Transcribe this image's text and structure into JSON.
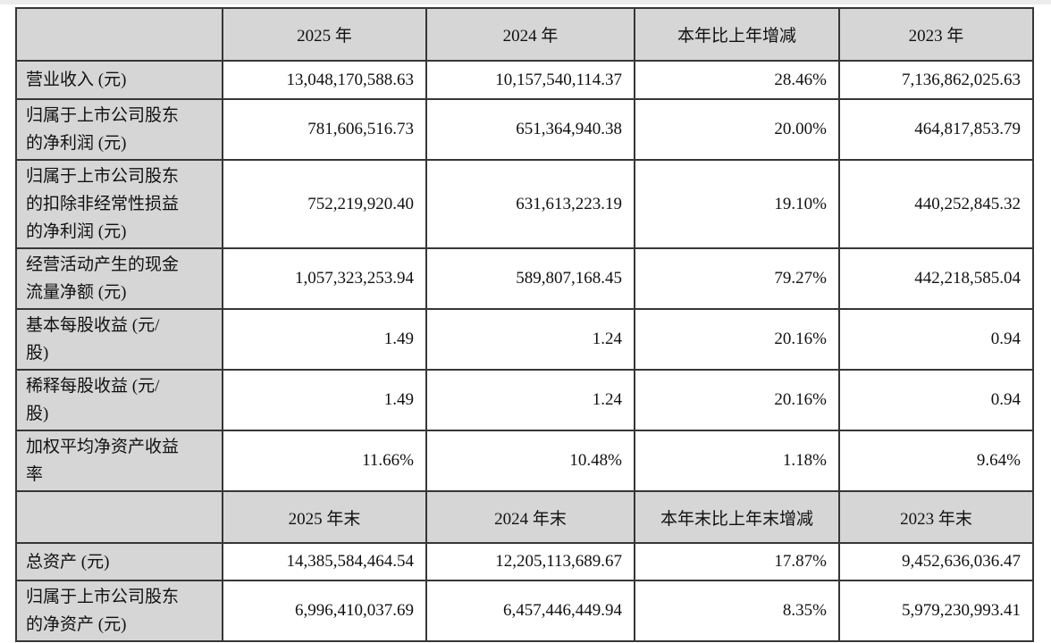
{
  "colors": {
    "cell_gray": "#d6d6d6",
    "cell_white": "#ffffff",
    "border": "#363636",
    "text": "#111111",
    "top_strip": "#ececec",
    "page_background": "#ffffff"
  },
  "table": {
    "sections": [
      {
        "header": [
          "",
          "2025 年",
          "2024 年",
          "本年比上年增减",
          "2023 年"
        ],
        "rows": [
          {
            "label": "营业收入 (元)",
            "values": [
              "13,048,170,588.63",
              "10,157,540,114.37",
              "28.46%",
              "7,136,862,025.63"
            ]
          },
          {
            "label": "归属于上市公司股东\n的净利润 (元)",
            "values": [
              "781,606,516.73",
              "651,364,940.38",
              "20.00%",
              "464,817,853.79"
            ]
          },
          {
            "label": "归属于上市公司股东\n的扣除非经常性损益\n的净利润 (元)",
            "values": [
              "752,219,920.40",
              "631,613,223.19",
              "19.10%",
              "440,252,845.32"
            ]
          },
          {
            "label": "经营活动产生的现金\n流量净额 (元)",
            "values": [
              "1,057,323,253.94",
              "589,807,168.45",
              "79.27%",
              "442,218,585.04"
            ]
          },
          {
            "label": "基本每股收益 (元/\n股)",
            "values": [
              "1.49",
              "1.24",
              "20.16%",
              "0.94"
            ]
          },
          {
            "label": "稀释每股收益 (元/\n股)",
            "values": [
              "1.49",
              "1.24",
              "20.16%",
              "0.94"
            ]
          },
          {
            "label": "加权平均净资产收益\n率",
            "values": [
              "11.66%",
              "10.48%",
              "1.18%",
              "9.64%"
            ]
          }
        ]
      },
      {
        "header": [
          "",
          "2025 年末",
          "2024 年末",
          "本年末比上年末增减",
          "2023 年末"
        ],
        "rows": [
          {
            "label": "总资产 (元)",
            "values": [
              "14,385,584,464.54",
              "12,205,113,689.67",
              "17.87%",
              "9,452,636,036.47"
            ]
          },
          {
            "label": "归属于上市公司股东\n的净资产 (元)",
            "values": [
              "6,996,410,037.69",
              "6,457,446,449.94",
              "8.35%",
              "5,979,230,993.41"
            ]
          }
        ]
      }
    ]
  }
}
